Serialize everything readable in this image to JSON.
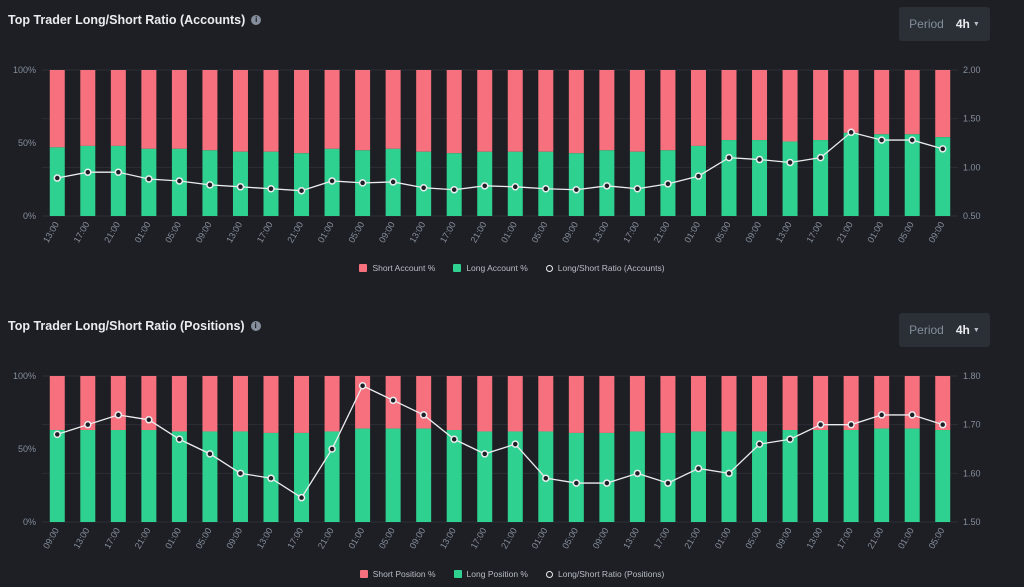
{
  "colors": {
    "short": "#f6707d",
    "long": "#2ed18f",
    "ratio": "#eaecef",
    "grid": "#2b2f36"
  },
  "panels": [
    {
      "title": "Top Trader Long/Short Ratio (Accounts)",
      "info_icon": "info-icon",
      "period_label": "Period",
      "period_value": "4h",
      "legend": {
        "short": "Short Account %",
        "long": "Long Account %",
        "ratio": "Long/Short Ratio (Accounts)"
      },
      "chart_data": {
        "type": "bar",
        "categories": [
          "13:00",
          "17:00",
          "21:00",
          "01:00",
          "05:00",
          "09:00",
          "13:00",
          "17:00",
          "21:00",
          "01:00",
          "05:00",
          "09:00",
          "13:00",
          "17:00",
          "21:00",
          "01:00",
          "05:00",
          "09:00",
          "13:00",
          "17:00",
          "21:00",
          "01:00",
          "05:00",
          "09:00",
          "13:00",
          "17:00",
          "21:00",
          "01:00",
          "05:00",
          "09:00"
        ],
        "left_ticks": [
          "0%",
          "50%",
          "100%"
        ],
        "right_ticks": [
          "0.50",
          "1.00",
          "1.50",
          "2.00"
        ],
        "ylim_left": [
          0,
          100
        ],
        "ylim_right": [
          0.5,
          2.0
        ],
        "series": [
          {
            "name": "Long Account %",
            "values": [
              47,
              48,
              48,
              46,
              46,
              45,
              44,
              44,
              43,
              46,
              45,
              46,
              44,
              43,
              44,
              44,
              44,
              43,
              45,
              44,
              45,
              48,
              52,
              52,
              51,
              52,
              57,
              56,
              56,
              54
            ]
          },
          {
            "name": "Short Account %",
            "values": [
              53,
              52,
              52,
              54,
              54,
              55,
              56,
              56,
              57,
              54,
              55,
              54,
              56,
              57,
              56,
              56,
              56,
              57,
              55,
              56,
              55,
              52,
              48,
              48,
              49,
              48,
              43,
              44,
              44,
              46
            ]
          },
          {
            "name": "Long/Short Ratio (Accounts)",
            "values": [
              0.89,
              0.95,
              0.95,
              0.88,
              0.86,
              0.82,
              0.8,
              0.78,
              0.76,
              0.86,
              0.84,
              0.85,
              0.79,
              0.77,
              0.81,
              0.8,
              0.78,
              0.77,
              0.81,
              0.78,
              0.83,
              0.91,
              1.1,
              1.08,
              1.05,
              1.1,
              1.36,
              1.28,
              1.28,
              1.19
            ]
          }
        ]
      }
    },
    {
      "title": "Top Trader Long/Short Ratio (Positions)",
      "info_icon": "info-icon",
      "period_label": "Period",
      "period_value": "4h",
      "legend": {
        "short": "Short Position %",
        "long": "Long Position %",
        "ratio": "Long/Short Ratio (Positions)"
      },
      "chart_data": {
        "type": "bar",
        "categories": [
          "09:00",
          "13:00",
          "17:00",
          "21:00",
          "01:00",
          "05:00",
          "09:00",
          "13:00",
          "17:00",
          "21:00",
          "01:00",
          "05:00",
          "09:00",
          "13:00",
          "17:00",
          "21:00",
          "01:00",
          "05:00",
          "09:00",
          "13:00",
          "17:00",
          "21:00",
          "01:00",
          "05:00",
          "09:00",
          "13:00",
          "17:00",
          "21:00",
          "01:00",
          "05:00"
        ],
        "left_ticks": [
          "0%",
          "50%",
          "100%"
        ],
        "right_ticks": [
          "1.50",
          "1.60",
          "1.70",
          "1.80"
        ],
        "ylim_left": [
          0,
          100
        ],
        "ylim_right": [
          1.5,
          1.8
        ],
        "series": [
          {
            "name": "Long Position %",
            "values": [
              63,
              63,
              63,
              63,
              62,
              62,
              62,
              61,
              61,
              62,
              64,
              64,
              64,
              63,
              62,
              62,
              62,
              61,
              61,
              62,
              61,
              62,
              62,
              62,
              63,
              63,
              63,
              64,
              64,
              63
            ]
          },
          {
            "name": "Short Position %",
            "values": [
              37,
              37,
              37,
              37,
              38,
              38,
              38,
              39,
              39,
              38,
              36,
              36,
              36,
              37,
              38,
              38,
              38,
              39,
              39,
              38,
              39,
              38,
              38,
              38,
              37,
              37,
              37,
              36,
              36,
              37
            ]
          },
          {
            "name": "Long/Short Ratio (Positions)",
            "values": [
              1.68,
              1.7,
              1.72,
              1.71,
              1.67,
              1.64,
              1.6,
              1.59,
              1.55,
              1.65,
              1.78,
              1.75,
              1.72,
              1.67,
              1.64,
              1.66,
              1.59,
              1.58,
              1.58,
              1.6,
              1.58,
              1.61,
              1.6,
              1.66,
              1.67,
              1.7,
              1.7,
              1.72,
              1.72,
              1.7
            ]
          }
        ]
      }
    }
  ]
}
